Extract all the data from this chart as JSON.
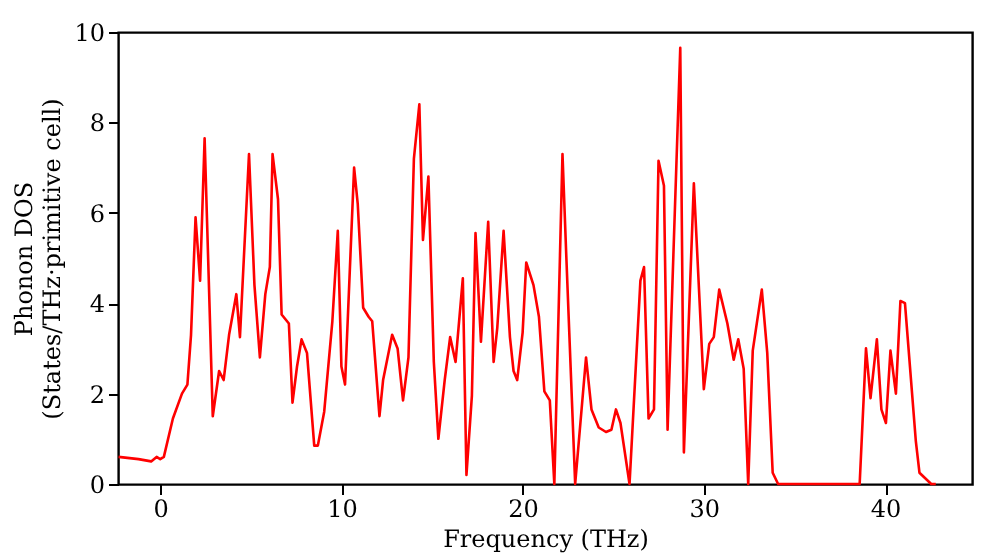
{
  "chart_data": {
    "type": "line",
    "xlabel": "Frequency (THz)",
    "ylabel": "Phonon DOS\n(States/THz·primitive cell)",
    "xlim": [
      -2.33,
      44.8
    ],
    "ylim": [
      0,
      10
    ],
    "xticks": [
      0,
      10,
      20,
      30,
      40
    ],
    "yticks": [
      0,
      2,
      4,
      6,
      8,
      10
    ],
    "grid": false,
    "series": [
      {
        "color": "#ff0000",
        "x": [
          -2.3,
          -1.2,
          -0.5,
          -0.2,
          0,
          0.2,
          0.7,
          1.2,
          1.5,
          1.7,
          1.95,
          2.2,
          2.45,
          2.9,
          3.25,
          3.5,
          3.8,
          4.2,
          4.4,
          4.9,
          5.2,
          5.5,
          5.8,
          6.05,
          6.2,
          6.5,
          6.7,
          7.1,
          7.3,
          7.55,
          7.8,
          8.1,
          8.5,
          8.7,
          9.05,
          9.5,
          9.8,
          10.0,
          10.2,
          10.7,
          10.9,
          11.2,
          11.5,
          11.7,
          12.1,
          12.3,
          12.8,
          13.1,
          13.4,
          13.7,
          14.0,
          14.3,
          14.5,
          14.8,
          15.1,
          15.35,
          15.7,
          16.0,
          16.3,
          16.7,
          16.9,
          17.2,
          17.4,
          17.7,
          18.1,
          18.4,
          18.6,
          18.95,
          19.3,
          19.5,
          19.7,
          20.0,
          20.2,
          20.6,
          20.9,
          21.2,
          21.5,
          21.75,
          22.2,
          22.4,
          22.9,
          23.5,
          23.8,
          24.2,
          24.6,
          24.9,
          25.15,
          25.4,
          25.9,
          26.5,
          26.7,
          26.95,
          27.25,
          27.5,
          27.8,
          28.0,
          28.7,
          28.9,
          29.45,
          30.0,
          30.3,
          30.55,
          30.85,
          31.3,
          31.65,
          31.9,
          32.2,
          32.45,
          32.7,
          33.2,
          33.5,
          33.8,
          34.1,
          38.6,
          38.95,
          39.2,
          39.55,
          39.8,
          40.05,
          40.3,
          40.6,
          40.85,
          41.1,
          41.7,
          41.9,
          42.55,
          42.8
        ],
        "values": [
          0.6,
          0.55,
          0.5,
          0.6,
          0.55,
          0.6,
          1.45,
          2.0,
          2.2,
          3.3,
          5.9,
          4.5,
          7.65,
          1.5,
          2.5,
          2.3,
          3.3,
          4.2,
          3.25,
          7.3,
          4.4,
          2.8,
          4.2,
          4.8,
          7.3,
          6.3,
          3.75,
          3.55,
          1.8,
          2.6,
          3.2,
          2.9,
          0.85,
          0.85,
          1.6,
          3.6,
          5.6,
          2.6,
          2.2,
          7.0,
          6.2,
          3.9,
          3.7,
          3.6,
          1.5,
          2.3,
          3.3,
          3.0,
          1.85,
          2.8,
          7.2,
          8.4,
          5.4,
          6.8,
          2.7,
          1.0,
          2.3,
          3.25,
          2.7,
          4.55,
          0.2,
          1.95,
          5.55,
          3.15,
          5.8,
          2.7,
          3.45,
          5.6,
          3.25,
          2.5,
          2.3,
          3.35,
          4.9,
          4.4,
          3.7,
          2.05,
          1.85,
          0,
          7.3,
          5.15,
          0,
          2.8,
          1.65,
          1.25,
          1.15,
          1.2,
          1.65,
          1.35,
          0,
          4.5,
          4.8,
          1.45,
          1.65,
          7.15,
          6.6,
          1.2,
          9.65,
          0.7,
          6.65,
          2.1,
          3.1,
          3.25,
          4.3,
          3.55,
          2.75,
          3.2,
          2.55,
          0,
          2.95,
          4.3,
          2.9,
          0.25,
          0,
          0,
          3.0,
          1.9,
          3.2,
          1.65,
          1.35,
          2.95,
          2.0,
          4.05,
          4.0,
          0.95,
          0.25,
          0,
          0
        ]
      }
    ]
  }
}
